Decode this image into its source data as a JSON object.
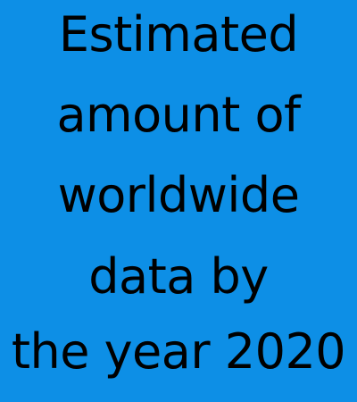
{
  "text_lines": [
    "Estimated",
    "amount of",
    "worldwide",
    "data by",
    "the year 2020"
  ],
  "colors": {
    "background": "#0D8FE6",
    "text": "#000000"
  }
}
